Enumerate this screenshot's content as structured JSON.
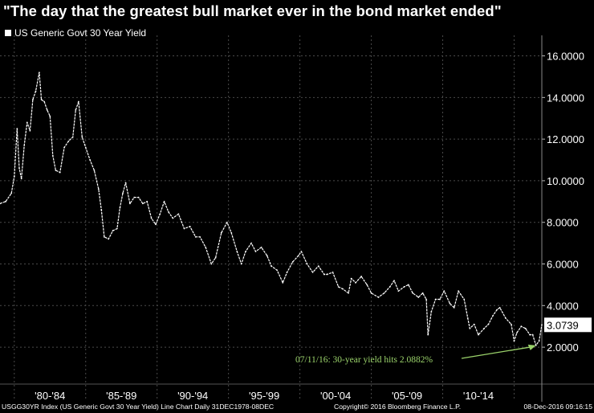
{
  "title": "\"The day that the greatest bull market ever in the bond market ended\"",
  "legend": {
    "label": "US Generic Govt 30 Year Yield",
    "color": "#ffffff"
  },
  "footer": {
    "left": "USGG30YR Index (US Generic Govt 30 Year Yield) Line Chart  Daily 31DEC1978-08DEC",
    "center": "Copyright© 2016 Bloomberg Finance L.P.",
    "right": "08-Dec-2016 09:16:15"
  },
  "chart_data": {
    "type": "line",
    "ylim": [
      1.0,
      16.6
    ],
    "yticks": [
      "2.0000",
      "4.0000",
      "6.0000",
      "8.0000",
      "10.0000",
      "12.0000",
      "14.0000",
      "16.0000"
    ],
    "xlim": [
      1979.0,
      2016.94
    ],
    "xtick_labels": [
      "'80-'84",
      "'85-'89",
      "'90-'94",
      "'95-'99",
      "'00-'04",
      "'05-'09",
      "'10-'14"
    ],
    "xtick_ranges": [
      [
        1980,
        1985
      ],
      [
        1985,
        1990
      ],
      [
        1990,
        1995
      ],
      [
        1995,
        2000
      ],
      [
        2000,
        2005
      ],
      [
        2005,
        2010
      ],
      [
        2010,
        2015
      ]
    ],
    "grid": true,
    "last_value": "3.0739",
    "annotation": {
      "text": "07/11/16: 30-year yield hits 2.0882%",
      "x": 2016.53,
      "y": 2.0882,
      "color": "#9bd36b"
    },
    "series": [
      {
        "name": "US Generic Govt 30 Year Yield",
        "x": [
          1979.0,
          1979.4,
          1979.8,
          1980.0,
          1980.2,
          1980.35,
          1980.5,
          1980.7,
          1980.9,
          1981.1,
          1981.3,
          1981.5,
          1981.75,
          1981.9,
          1982.1,
          1982.3,
          1982.5,
          1982.7,
          1982.9,
          1983.2,
          1983.5,
          1983.8,
          1984.1,
          1984.3,
          1984.5,
          1984.75,
          1985.0,
          1985.3,
          1985.6,
          1985.9,
          1986.1,
          1986.3,
          1986.6,
          1986.9,
          1987.2,
          1987.4,
          1987.6,
          1987.8,
          1988.1,
          1988.4,
          1988.7,
          1989.0,
          1989.3,
          1989.6,
          1989.9,
          1990.2,
          1990.5,
          1990.8,
          1991.1,
          1991.5,
          1991.9,
          1992.3,
          1992.7,
          1993.0,
          1993.4,
          1993.8,
          1994.1,
          1994.5,
          1994.9,
          1995.2,
          1995.6,
          1995.9,
          1996.2,
          1996.6,
          1996.9,
          1997.3,
          1997.7,
          1998.0,
          1998.4,
          1998.8,
          1999.1,
          1999.5,
          1999.9,
          2000.1,
          2000.5,
          2000.9,
          2001.3,
          2001.7,
          2001.9,
          2002.3,
          2002.7,
          2003.0,
          2003.4,
          2003.6,
          2003.9,
          2004.3,
          2004.7,
          2005.0,
          2005.5,
          2005.9,
          2006.3,
          2006.6,
          2006.9,
          2007.3,
          2007.6,
          2007.9,
          2008.3,
          2008.6,
          2008.85,
          2008.97,
          2009.2,
          2009.5,
          2009.8,
          2010.1,
          2010.5,
          2010.8,
          2011.1,
          2011.5,
          2011.75,
          2011.9,
          2012.2,
          2012.5,
          2012.9,
          2013.2,
          2013.5,
          2013.8,
          2014.0,
          2014.4,
          2014.8,
          2015.0,
          2015.2,
          2015.5,
          2015.8,
          2016.1,
          2016.3,
          2016.53,
          2016.75,
          2016.94
        ],
        "values": [
          8.9,
          9.0,
          9.4,
          10.2,
          12.5,
          10.6,
          10.1,
          11.7,
          12.8,
          12.4,
          13.9,
          14.3,
          15.2,
          13.9,
          13.8,
          13.4,
          13.1,
          11.2,
          10.5,
          10.4,
          11.6,
          11.9,
          12.1,
          13.4,
          13.8,
          12.1,
          11.6,
          11.0,
          10.5,
          9.6,
          8.6,
          7.3,
          7.2,
          7.6,
          7.7,
          8.7,
          9.4,
          9.9,
          8.9,
          9.2,
          9.2,
          8.9,
          9.0,
          8.2,
          7.9,
          8.4,
          9.0,
          8.5,
          8.2,
          8.4,
          7.7,
          7.8,
          7.3,
          7.3,
          6.8,
          6.0,
          6.3,
          7.5,
          8.0,
          7.5,
          6.6,
          6.0,
          6.6,
          7.0,
          6.6,
          6.8,
          6.4,
          5.9,
          5.7,
          5.1,
          5.6,
          6.1,
          6.4,
          6.6,
          6.0,
          5.6,
          5.9,
          5.5,
          5.5,
          5.6,
          4.9,
          4.8,
          4.6,
          5.3,
          5.1,
          5.4,
          5.0,
          4.6,
          4.4,
          4.6,
          4.9,
          5.2,
          4.7,
          4.9,
          5.0,
          4.6,
          4.4,
          4.6,
          4.3,
          2.6,
          3.7,
          4.3,
          4.3,
          4.7,
          4.1,
          3.9,
          4.7,
          4.3,
          3.4,
          2.9,
          3.1,
          2.6,
          2.9,
          3.1,
          3.5,
          3.8,
          3.9,
          3.4,
          3.1,
          2.3,
          2.7,
          3.0,
          2.9,
          2.6,
          2.6,
          2.0882,
          2.3,
          3.0739
        ]
      }
    ]
  }
}
